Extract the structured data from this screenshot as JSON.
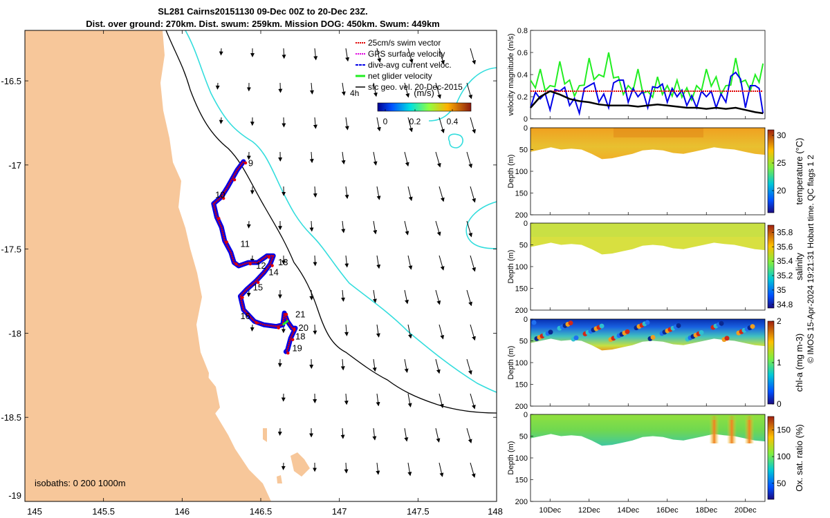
{
  "header": {
    "title_line1": "SL281 Cairns20151130 09-Dec 00Z to 20-Dec 23Z.",
    "title_line2": "Dist. over ground: 270km. Dist. swum: 259km. Mission DOG: 450km. Swum: 449km"
  },
  "credit": "© IMOS 15-Apr-2024 19:21:31 Hobart time. QC flags 1  2",
  "colors": {
    "land": "#F7C79A",
    "isobath_0": "#000000",
    "isobath_200": "#000000",
    "isobath_1000": "#33DDDD",
    "swim_vector": "#E00000",
    "gps_velocity": "#E000E0",
    "dive_avg": "#0000E8",
    "net_glider": "#22EE22",
    "sfc_geo": "#000000"
  },
  "chart_data": [
    {
      "id": "map",
      "type": "scatter",
      "title": "Glider track map",
      "xlim": [
        145,
        148
      ],
      "ylim": [
        -19,
        -16.2
      ],
      "xticks": [
        "145",
        "145.5",
        "146",
        "146.5",
        "147",
        "147.5",
        "148"
      ],
      "yticks": [
        "-16.5",
        "-17",
        "-17.5",
        "-18",
        "-18.5",
        "-19"
      ],
      "legend": [
        "25cm/s swim vector",
        "GPS surface velocity",
        "dive-avg current veloc.",
        "net glider velocity",
        "sfc geo. vel. 20-Dec-2015"
      ],
      "legend_extra": "4h",
      "colorbar_label": "(m/s)",
      "colorbar_ticks": [
        "0",
        "0.2",
        "0.4"
      ],
      "colorbar_range": [
        0,
        0.5
      ],
      "isobath_label": "isobaths: 0   200  1000m",
      "track": [
        [
          146.39,
          -16.98
        ],
        [
          146.35,
          -17.03
        ],
        [
          146.32,
          -17.08
        ],
        [
          146.29,
          -17.13
        ],
        [
          146.25,
          -17.19
        ],
        [
          146.2,
          -17.23
        ],
        [
          146.22,
          -17.31
        ],
        [
          146.25,
          -17.37
        ],
        [
          146.27,
          -17.45
        ],
        [
          146.31,
          -17.52
        ],
        [
          146.33,
          -17.58
        ],
        [
          146.36,
          -17.6
        ],
        [
          146.42,
          -17.58
        ],
        [
          146.48,
          -17.58
        ],
        [
          146.54,
          -17.54
        ],
        [
          146.58,
          -17.54
        ],
        [
          146.56,
          -17.59
        ],
        [
          146.52,
          -17.64
        ],
        [
          146.47,
          -17.69
        ],
        [
          146.41,
          -17.74
        ],
        [
          146.37,
          -17.78
        ],
        [
          146.39,
          -17.86
        ],
        [
          146.46,
          -17.93
        ],
        [
          146.52,
          -17.95
        ],
        [
          146.6,
          -17.96
        ],
        [
          146.64,
          -17.95
        ],
        [
          146.65,
          -17.88
        ],
        [
          146.67,
          -17.93
        ],
        [
          146.7,
          -17.97
        ],
        [
          146.72,
          -17.97
        ],
        [
          146.69,
          -18.03
        ],
        [
          146.67,
          -18.1
        ],
        [
          146.66,
          -18.11
        ]
      ],
      "day_labels": [
        {
          "text": "9",
          "lon": 146.42,
          "lat": -16.99
        },
        {
          "text": "10",
          "lon": 146.21,
          "lat": -17.18
        },
        {
          "text": "11",
          "lon": 146.37,
          "lat": -17.47
        },
        {
          "text": "12",
          "lon": 146.47,
          "lat": -17.6
        },
        {
          "text": "13",
          "lon": 146.61,
          "lat": -17.58
        },
        {
          "text": "14",
          "lon": 146.55,
          "lat": -17.64
        },
        {
          "text": "15",
          "lon": 146.45,
          "lat": -17.73
        },
        {
          "text": "16",
          "lon": 146.37,
          "lat": -17.9
        },
        {
          "text": "21",
          "lon": 146.72,
          "lat": -17.89
        },
        {
          "text": "20",
          "lon": 146.74,
          "lat": -17.97
        },
        {
          "text": "18",
          "lon": 146.72,
          "lat": -18.02
        },
        {
          "text": "19",
          "lon": 146.7,
          "lat": -18.09
        }
      ]
    },
    {
      "id": "velocity",
      "type": "line",
      "ylabel": "velocity magnitude (m/s)",
      "ylim": [
        0,
        0.8
      ],
      "yticks": [
        "0",
        "0.2",
        "0.4",
        "0.6",
        "0.8"
      ],
      "x": [
        9.0,
        9.5,
        10.0,
        10.5,
        11.0,
        11.5,
        12.0,
        12.5,
        13.0,
        13.5,
        14.0,
        14.5,
        15.0,
        15.5,
        16.0,
        16.5,
        17.0,
        17.5,
        18.0,
        18.5,
        19.0,
        19.5,
        20.0,
        20.5,
        20.9
      ],
      "series": [
        {
          "name": "net glider velocity",
          "color": "#22EE22",
          "values": [
            0.35,
            0.45,
            0.3,
            0.52,
            0.35,
            0.3,
            0.55,
            0.4,
            0.6,
            0.38,
            0.3,
            0.45,
            0.25,
            0.38,
            0.3,
            0.35,
            0.28,
            0.3,
            0.45,
            0.38,
            0.3,
            0.55,
            0.35,
            0.4,
            0.5
          ]
        },
        {
          "name": "dive-avg current veloc.",
          "color": "#0000E8",
          "values": [
            0.1,
            0.18,
            0.08,
            0.25,
            0.12,
            0.05,
            0.3,
            0.15,
            0.1,
            0.35,
            0.15,
            0.2,
            0.1,
            0.28,
            0.15,
            0.2,
            0.12,
            0.1,
            0.2,
            0.1,
            0.15,
            0.42,
            0.1,
            0.3,
            0.05
          ]
        },
        {
          "name": "25cm/s swim vector",
          "color": "#E00000",
          "values": [
            0.25,
            0.25,
            0.25,
            0.25,
            0.25,
            0.25,
            0.25,
            0.25,
            0.25,
            0.25,
            0.25,
            0.25,
            0.25,
            0.25,
            0.25,
            0.25,
            0.25,
            0.25,
            0.25,
            0.25,
            0.25,
            0.25,
            0.25,
            0.25,
            0.25
          ]
        },
        {
          "name": "sfc geo. vel.",
          "color": "#000000",
          "values": [
            0.1,
            0.2,
            0.25,
            0.22,
            0.18,
            0.16,
            0.15,
            0.13,
            0.12,
            0.12,
            0.12,
            0.11,
            0.12,
            0.13,
            0.12,
            0.11,
            0.1,
            0.1,
            0.09,
            0.1,
            0.09,
            0.1,
            0.08,
            0.06,
            0.05
          ]
        }
      ]
    },
    {
      "id": "temperature",
      "type": "heatmap",
      "ylabel": "Depth (m)",
      "cbar_label": "temperature (°C)",
      "cbar_ticks": [
        "30",
        "25",
        "20"
      ],
      "crange": [
        16,
        31
      ],
      "ylim": [
        0,
        200
      ],
      "yticks": [
        "0",
        "50",
        "100",
        "150",
        "200"
      ],
      "bottom_depth": [
        55,
        50,
        45,
        50,
        48,
        50,
        60,
        72,
        70,
        65,
        60,
        52,
        50,
        52,
        58,
        60,
        55,
        50,
        45,
        48,
        50,
        55,
        60,
        62
      ]
    },
    {
      "id": "salinity",
      "type": "heatmap",
      "ylabel": "Depth (m)",
      "cbar_label": "salinity",
      "cbar_ticks": [
        "35.8",
        "35.6",
        "35.4",
        "35.2",
        "35",
        "34.8"
      ],
      "crange": [
        34.75,
        35.9
      ],
      "ylim": [
        0,
        200
      ],
      "yticks": [
        "0",
        "50",
        "100",
        "150",
        "200"
      ],
      "bottom_depth": [
        55,
        50,
        45,
        50,
        48,
        50,
        60,
        72,
        70,
        65,
        60,
        52,
        50,
        52,
        58,
        60,
        55,
        50,
        45,
        48,
        50,
        55,
        60,
        62
      ]
    },
    {
      "id": "chla",
      "type": "heatmap",
      "ylabel": "Depth (m)",
      "cbar_label": "chl-a (mg m-3)",
      "cbar_ticks": [
        "2",
        "1",
        "0"
      ],
      "crange": [
        0,
        2
      ],
      "ylim": [
        0,
        200
      ],
      "yticks": [
        "0",
        "50",
        "100",
        "150",
        "200"
      ],
      "bottom_depth": [
        55,
        50,
        45,
        50,
        48,
        50,
        60,
        72,
        70,
        65,
        60,
        52,
        50,
        52,
        58,
        60,
        55,
        50,
        45,
        48,
        50,
        55,
        60,
        62
      ]
    },
    {
      "id": "oxygen",
      "type": "heatmap",
      "ylabel": "Depth (m)",
      "cbar_label": "Ox. sat. ratio (%)",
      "cbar_ticks": [
        "150",
        "100",
        "50"
      ],
      "crange": [
        20,
        175
      ],
      "ylim": [
        0,
        200
      ],
      "yticks": [
        "0",
        "50",
        "100",
        "150",
        "200"
      ],
      "bottom_depth": [
        55,
        50,
        45,
        50,
        48,
        50,
        60,
        72,
        70,
        65,
        60,
        52,
        50,
        52,
        58,
        60,
        55,
        50,
        45,
        48,
        50,
        55,
        60,
        62
      ],
      "xticks": [
        "10Dec",
        "12Dec",
        "14Dec",
        "16Dec",
        "18Dec",
        "20Dec"
      ],
      "xtick_days": [
        10,
        12,
        14,
        16,
        18,
        20
      ],
      "xlim_days": [
        9,
        21
      ]
    }
  ]
}
